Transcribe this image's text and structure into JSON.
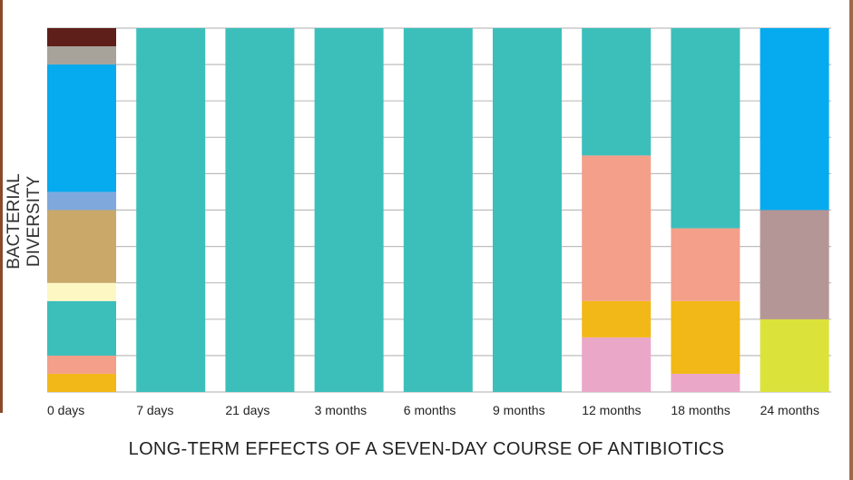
{
  "chart_data": {
    "type": "stacked-bar",
    "title": "LONG-TERM EFFECTS OF A SEVEN-DAY COURSE OF ANTIBIOTICS",
    "xlabel": "LONG-TERM EFFECTS OF A SEVEN-DAY COURSE OF ANTIBIOTICS",
    "ylabel": "BACTERIAL DIVERSITY",
    "ylim": [
      0,
      10
    ],
    "grid": true,
    "categories": [
      "0 days",
      "7 days",
      "21 days",
      "3 months",
      "6 months",
      "9 months",
      "12 months",
      "18 months",
      "24 months"
    ],
    "bars": [
      {
        "category": "0 days",
        "segments": [
          {
            "color": "#f2b817",
            "value": 0.5
          },
          {
            "color": "#f39f8a",
            "value": 0.5
          },
          {
            "color": "#3cbfbb",
            "value": 1.5
          },
          {
            "color": "#fdf7c3",
            "value": 0.5
          },
          {
            "color": "#c9a86a",
            "value": 2
          },
          {
            "color": "#7fa9dd",
            "value": 0.5
          },
          {
            "color": "#06aaee",
            "value": 3.5
          },
          {
            "color": "#a8a39a",
            "value": 0.5
          },
          {
            "color": "#5e1f1a",
            "value": 0.5
          }
        ]
      },
      {
        "category": "7 days",
        "segments": [
          {
            "color": "#3cbfbb",
            "value": 10
          }
        ]
      },
      {
        "category": "21 days",
        "segments": [
          {
            "color": "#3cbfbb",
            "value": 10
          }
        ]
      },
      {
        "category": "3 months",
        "segments": [
          {
            "color": "#3cbfbb",
            "value": 10
          }
        ]
      },
      {
        "category": "6 months",
        "segments": [
          {
            "color": "#3cbfbb",
            "value": 10
          }
        ]
      },
      {
        "category": "9 months",
        "segments": [
          {
            "color": "#3cbfbb",
            "value": 10
          }
        ]
      },
      {
        "category": "12 months",
        "segments": [
          {
            "color": "#eaa7c8",
            "value": 1.5
          },
          {
            "color": "#f2b817",
            "value": 1
          },
          {
            "color": "#f39f8a",
            "value": 4
          },
          {
            "color": "#3cbfbb",
            "value": 3.5
          }
        ]
      },
      {
        "category": "18 months",
        "segments": [
          {
            "color": "#eaa7c8",
            "value": 0.5
          },
          {
            "color": "#f2b817",
            "value": 2
          },
          {
            "color": "#f39f8a",
            "value": 2
          },
          {
            "color": "#3cbfbb",
            "value": 5.5
          }
        ]
      },
      {
        "category": "24 months",
        "segments": [
          {
            "color": "#dbe33a",
            "value": 2
          },
          {
            "color": "#b59696",
            "value": 3
          },
          {
            "color": "#06aaee",
            "value": 5
          }
        ]
      }
    ]
  }
}
